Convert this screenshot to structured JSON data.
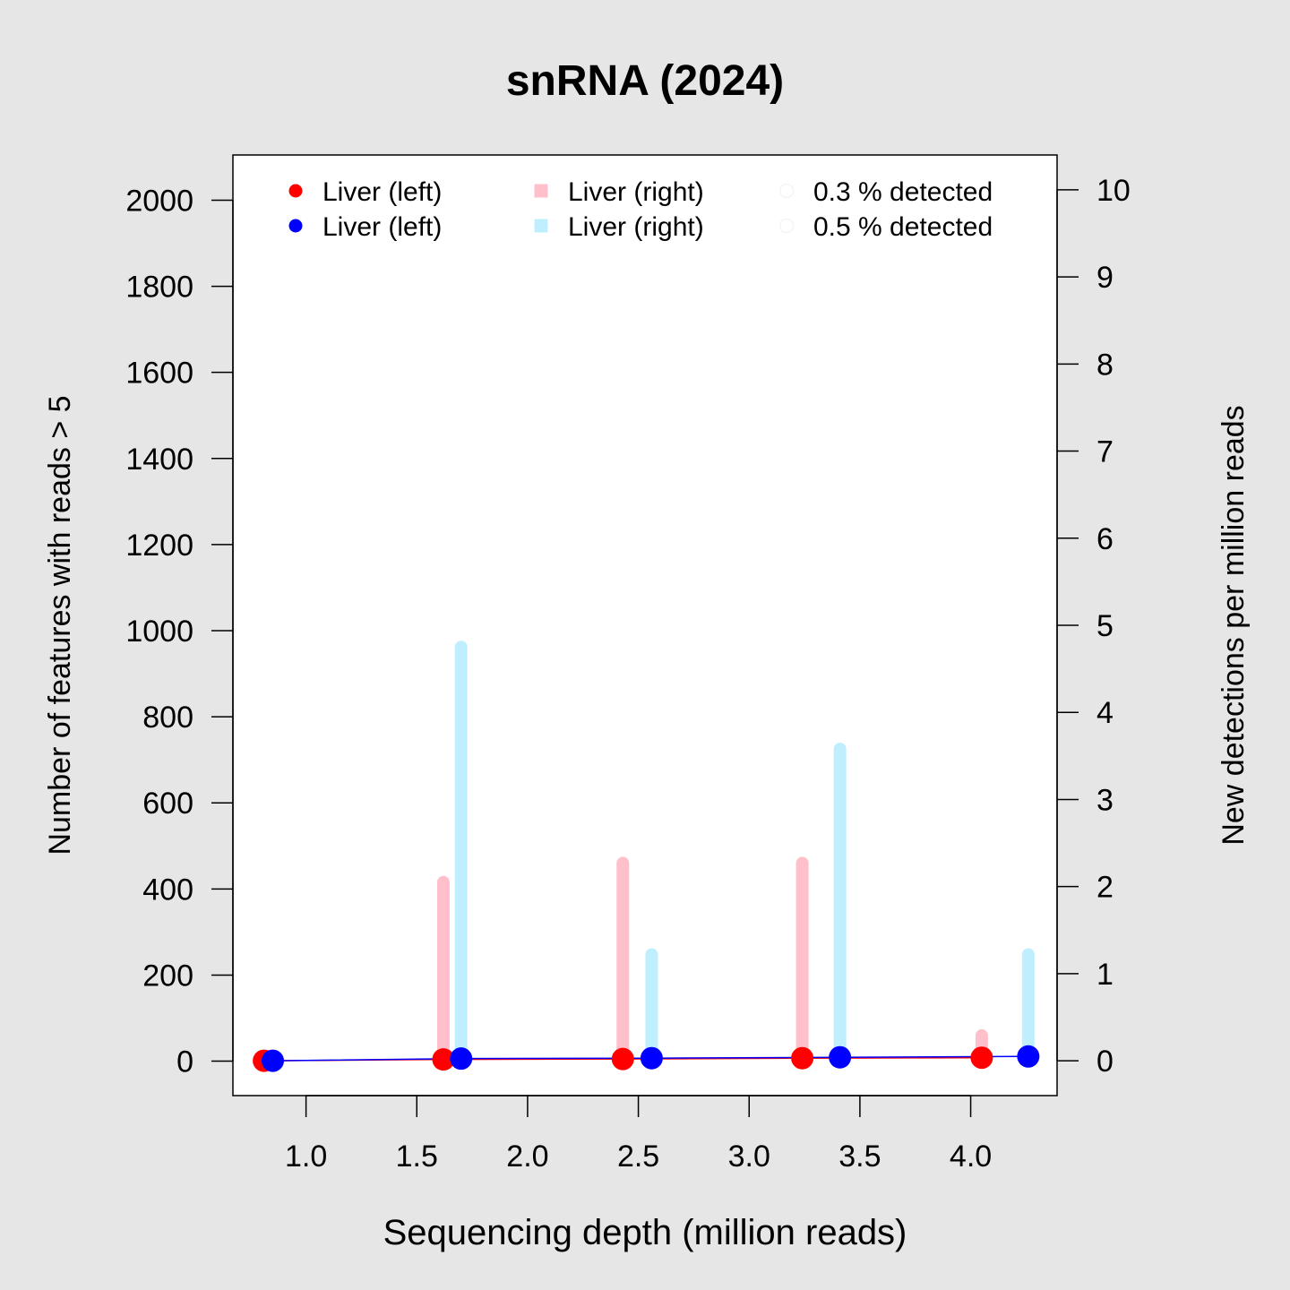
{
  "chart_data": {
    "type": "scatter",
    "title": "snRNA (2024)",
    "xlabel": "Sequencing depth (million reads)",
    "ylabel": "Number of features with reads > 5",
    "y2label": "New detections per million reads",
    "xlim": [
      0.67,
      4.39
    ],
    "ylim": [
      -80,
      2105
    ],
    "y2lim": [
      -0.4,
      10.4
    ],
    "x_ticks": [
      "1.0",
      "1.5",
      "2.0",
      "2.5",
      "3.0",
      "3.5",
      "4.0"
    ],
    "y_ticks": [
      "0",
      "200",
      "400",
      "600",
      "800",
      "1000",
      "1200",
      "1400",
      "1600",
      "1800",
      "2000"
    ],
    "y2_ticks": [
      "0",
      "1",
      "2",
      "3",
      "4",
      "5",
      "6",
      "7",
      "8",
      "9",
      "10"
    ],
    "legend_position": "top",
    "legend": [
      {
        "label": "Liver (left)",
        "color": "#ff0000",
        "shape": "circle"
      },
      {
        "label": "Liver (left)",
        "color": "#0000ff",
        "shape": "circle"
      },
      {
        "label": "Liver (right)",
        "color": "#ffc0cb",
        "shape": "square"
      },
      {
        "label": "Liver (right)",
        "color": "#bfefff",
        "shape": "square"
      },
      {
        "label": "0.3 % detected",
        "color": "#f4f4f4",
        "shape": "open-circle"
      },
      {
        "label": "0.5 % detected",
        "color": "#f4f4f4",
        "shape": "open-circle"
      }
    ],
    "series": [
      {
        "axis": "left",
        "kind": "points+line",
        "color": "#ff0000",
        "x": [
          0.81,
          1.62,
          2.43,
          3.24,
          4.05
        ],
        "y": [
          1,
          4,
          5,
          7,
          8
        ]
      },
      {
        "axis": "left",
        "kind": "points+line",
        "color": "#0000ff",
        "x": [
          0.85,
          1.7,
          2.56,
          3.41,
          4.26
        ],
        "y": [
          1,
          6,
          7,
          9,
          11
        ]
      },
      {
        "axis": "right",
        "kind": "bars",
        "color": "#ffc0cb",
        "x": [
          1.62,
          2.43,
          3.24,
          4.05
        ],
        "y": [
          2.05,
          2.27,
          2.27,
          0.29
        ]
      },
      {
        "axis": "right",
        "kind": "bars",
        "color": "#bfefff",
        "x": [
          1.7,
          2.56,
          3.41,
          4.26
        ],
        "y": [
          4.75,
          1.22,
          3.58,
          1.22
        ]
      }
    ]
  }
}
